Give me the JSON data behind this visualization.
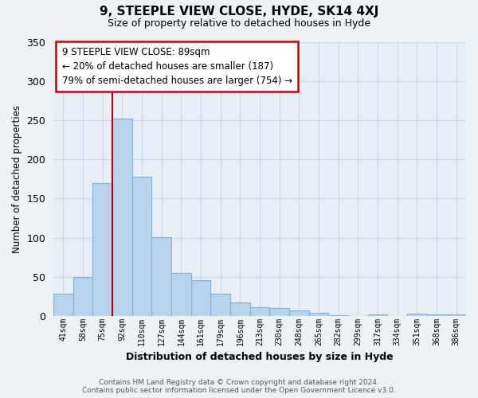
{
  "title": "9, STEEPLE VIEW CLOSE, HYDE, SK14 4XJ",
  "subtitle": "Size of property relative to detached houses in Hyde",
  "xlabel": "Distribution of detached houses by size in Hyde",
  "ylabel": "Number of detached properties",
  "bar_labels": [
    "41sqm",
    "58sqm",
    "75sqm",
    "92sqm",
    "110sqm",
    "127sqm",
    "144sqm",
    "161sqm",
    "179sqm",
    "196sqm",
    "213sqm",
    "230sqm",
    "248sqm",
    "265sqm",
    "282sqm",
    "299sqm",
    "317sqm",
    "334sqm",
    "351sqm",
    "368sqm",
    "386sqm"
  ],
  "bar_values": [
    28,
    50,
    170,
    252,
    178,
    101,
    55,
    46,
    28,
    17,
    11,
    10,
    7,
    4,
    1,
    0,
    2,
    0,
    3,
    2,
    2
  ],
  "bar_color": "#b8d4ec",
  "bar_edge_color": "#88aed0",
  "vline_x_index": 3,
  "vline_color": "#cc0000",
  "annotation_text": "9 STEEPLE VIEW CLOSE: 89sqm\n← 20% of detached houses are smaller (187)\n79% of semi-detached houses are larger (754) →",
  "annotation_box_color": "#ffffff",
  "annotation_border_color": "#cc0000",
  "ylim": [
    0,
    350
  ],
  "yticks": [
    0,
    50,
    100,
    150,
    200,
    250,
    300,
    350
  ],
  "footer_text": "Contains HM Land Registry data © Crown copyright and database right 2024.\nContains public sector information licensed under the Open Government Licence v3.0.",
  "bg_color": "#edf2f7",
  "plot_bg_color": "#e8eef5",
  "grid_color": "#c8d8e8"
}
